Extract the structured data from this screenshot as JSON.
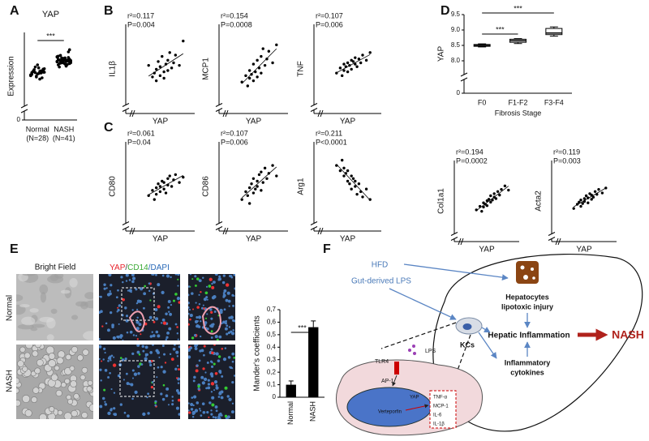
{
  "panel_labels": [
    "A",
    "B",
    "C",
    "D",
    "E",
    "F"
  ],
  "chart_data": [
    {
      "type": "strip",
      "title": "YAP",
      "y_label": "Expression",
      "categories": [
        "Normal",
        "NASH"
      ],
      "category_notes": [
        "(N=28)",
        "(N=41)"
      ],
      "values": [
        [
          8.52,
          8.58,
          8.61,
          8.55,
          8.49,
          8.63,
          8.57,
          8.66,
          8.45,
          8.6,
          8.54,
          8.7,
          8.59,
          8.5,
          8.62,
          8.56,
          8.68,
          8.47,
          8.64,
          8.53,
          8.58,
          8.61,
          8.42,
          8.75,
          8.57,
          8.6,
          8.51,
          8.65
        ],
        [
          8.82,
          8.88,
          8.76,
          8.91,
          8.85,
          8.79,
          8.95,
          8.83,
          8.87,
          8.72,
          8.9,
          8.8,
          8.86,
          8.93,
          8.78,
          8.84,
          8.89,
          8.81,
          8.97,
          8.75,
          8.85,
          8.92,
          8.83,
          8.79,
          8.87,
          8.7,
          8.94,
          8.82,
          8.86,
          8.77,
          8.9,
          8.84,
          8.88,
          8.8,
          9.05,
          8.73,
          8.85,
          8.91,
          8.78,
          8.83,
          9.1
        ]
      ],
      "ylim": [
        8,
        9.5
      ],
      "yticks": [
        0
      ],
      "axis_break": true,
      "significance": "***",
      "color": "#000000"
    },
    {
      "type": "scatter",
      "annotation": [
        "r²=0.117",
        "P=0.004"
      ],
      "y_label": "IL1β",
      "x_label": "YAP",
      "x": [
        8.3,
        8.4,
        8.45,
        8.5,
        8.5,
        8.55,
        8.6,
        8.6,
        8.65,
        8.7,
        8.7,
        8.75,
        8.8,
        8.8,
        8.85,
        8.9,
        8.95,
        9.0,
        9.1,
        9.2
      ],
      "y": [
        4.8,
        3.9,
        4.2,
        4.5,
        3.6,
        5.1,
        4.0,
        4.7,
        5.5,
        4.3,
        3.8,
        4.9,
        5.2,
        4.4,
        5.8,
        4.6,
        5.0,
        5.6,
        4.8,
        6.7
      ],
      "xlim": [
        8,
        9.5
      ],
      "ylim": [
        2,
        8
      ],
      "axis_break": true,
      "trendline": true,
      "color": "#000000"
    },
    {
      "type": "scatter",
      "annotation": [
        "r²=0.154",
        "P=0.0008"
      ],
      "y_label": "MCP1",
      "x_label": "YAP",
      "x": [
        8.3,
        8.4,
        8.45,
        8.5,
        8.5,
        8.55,
        8.6,
        8.6,
        8.65,
        8.7,
        8.7,
        8.75,
        8.8,
        8.8,
        8.85,
        8.9,
        8.95,
        9.0,
        9.1,
        9.2
      ],
      "y": [
        3.5,
        4.0,
        3.2,
        4.4,
        3.8,
        4.1,
        3.6,
        4.9,
        4.3,
        5.2,
        3.9,
        4.6,
        5.5,
        4.2,
        6.1,
        4.8,
        5.3,
        5.9,
        5.0,
        6.4
      ],
      "xlim": [
        8,
        9.5
      ],
      "ylim": [
        2,
        8
      ],
      "axis_break": true,
      "trendline": true,
      "color": "#000000"
    },
    {
      "type": "scatter",
      "annotation": [
        "r²=0.107",
        "P=0.006"
      ],
      "y_label": "TNF",
      "x_label": "YAP",
      "x": [
        8.3,
        8.4,
        8.45,
        8.5,
        8.5,
        8.55,
        8.6,
        8.6,
        8.65,
        8.7,
        8.7,
        8.75,
        8.8,
        8.8,
        8.85,
        8.9,
        8.95,
        9.0,
        9.1,
        9.2
      ],
      "y": [
        4.2,
        4.6,
        4.0,
        4.9,
        4.4,
        4.7,
        5.0,
        4.3,
        4.8,
        5.2,
        4.5,
        5.1,
        4.9,
        5.4,
        4.7,
        5.3,
        5.0,
        5.6,
        5.2,
        5.8
      ],
      "xlim": [
        8,
        9.5
      ],
      "ylim": [
        2,
        8
      ],
      "axis_break": true,
      "trendline": true,
      "color": "#000000"
    },
    {
      "type": "scatter",
      "annotation": [
        "r²=0.061",
        "P=0.04"
      ],
      "y_label": "CD80",
      "x_label": "YAP",
      "x": [
        8.3,
        8.4,
        8.45,
        8.5,
        8.5,
        8.55,
        8.6,
        8.6,
        8.65,
        8.7,
        8.7,
        8.75,
        8.8,
        8.8,
        8.85,
        8.9,
        8.95,
        9.0,
        9.1,
        9.2
      ],
      "y": [
        3.9,
        4.3,
        3.6,
        4.5,
        4.0,
        4.8,
        4.2,
        4.6,
        5.0,
        4.4,
        4.9,
        4.1,
        5.2,
        4.7,
        5.4,
        4.6,
        5.1,
        5.5,
        4.9,
        5.3
      ],
      "xlim": [
        8,
        9.5
      ],
      "ylim": [
        2,
        8
      ],
      "axis_break": true,
      "trendline": true,
      "color": "#000000"
    },
    {
      "type": "scatter",
      "annotation": [
        "r²=0.107",
        "P=0.006"
      ],
      "y_label": "CD86",
      "x_label": "YAP",
      "x": [
        8.3,
        8.4,
        8.45,
        8.5,
        8.5,
        8.55,
        8.6,
        8.6,
        8.65,
        8.7,
        8.7,
        8.75,
        8.8,
        8.8,
        8.85,
        8.9,
        8.95,
        9.0,
        9.1,
        9.2
      ],
      "y": [
        3.6,
        4.2,
        3.9,
        4.5,
        3.3,
        4.8,
        4.1,
        5.2,
        4.4,
        5.0,
        4.6,
        5.5,
        4.3,
        5.7,
        4.9,
        6.0,
        5.2,
        5.6,
        6.2,
        5.4
      ],
      "xlim": [
        8,
        9.5
      ],
      "ylim": [
        2,
        8
      ],
      "axis_break": true,
      "trendline": true,
      "color": "#000000"
    },
    {
      "type": "scatter",
      "annotation": [
        "r²=0.211",
        "P<0.0001"
      ],
      "y_label": "Arg1",
      "x_label": "YAP",
      "x": [
        8.3,
        8.4,
        8.45,
        8.5,
        8.5,
        8.55,
        8.6,
        8.6,
        8.65,
        8.7,
        8.7,
        8.75,
        8.8,
        8.8,
        8.85,
        8.9,
        8.95,
        9.0,
        9.1,
        9.2
      ],
      "y": [
        10.6,
        10.4,
        10.8,
        10.2,
        10.5,
        10.3,
        10.0,
        10.4,
        9.9,
        10.2,
        9.7,
        10.1,
        9.8,
        10.0,
        9.5,
        9.9,
        9.6,
        9.4,
        9.7,
        9.3
      ],
      "xlim": [
        8,
        9.5
      ],
      "ylim": [
        8.5,
        11.5
      ],
      "axis_break": true,
      "trendline": true,
      "color": "#000000"
    },
    {
      "type": "box",
      "y_label": "YAP",
      "x_label": "Fibrosis Stage",
      "categories": [
        "F0",
        "F1-F2",
        "F3-F4"
      ],
      "boxes": [
        {
          "min": 8.45,
          "q1": 8.47,
          "median": 8.5,
          "q3": 8.53,
          "max": 8.55
        },
        {
          "min": 8.56,
          "q1": 8.6,
          "median": 8.65,
          "q3": 8.7,
          "max": 8.72
        },
        {
          "min": 8.8,
          "q1": 8.85,
          "median": 8.9,
          "q3": 9.05,
          "max": 9.1
        }
      ],
      "ylim": [
        8,
        9.5
      ],
      "yticks": [
        0,
        {
          "value": 8,
          "label": "8.0"
        },
        {
          "value": 8.5,
          "label": "8.5"
        },
        {
          "value": 9,
          "label": "9.0"
        },
        {
          "value": 9.5,
          "label": "9.5"
        }
      ],
      "axis_break": true,
      "significance": [
        "***",
        "***"
      ]
    },
    {
      "type": "scatter",
      "annotation": [
        "r²=0.194",
        "P=0.0002"
      ],
      "y_label": "Col1a1",
      "x_label": "YAP",
      "x": [
        8.3,
        8.4,
        8.45,
        8.5,
        8.5,
        8.55,
        8.6,
        8.6,
        8.65,
        8.7,
        8.7,
        8.75,
        8.8,
        8.8,
        8.85,
        8.9,
        8.95,
        9.0,
        9.1,
        9.2
      ],
      "y": [
        3.0,
        3.5,
        2.8,
        4.0,
        3.4,
        3.8,
        4.3,
        3.6,
        4.5,
        4.1,
        5.0,
        4.4,
        4.8,
        5.3,
        4.6,
        5.6,
        5.1,
        5.9,
        6.4,
        5.8
      ],
      "xlim": [
        8,
        9.5
      ],
      "ylim": [
        0,
        10
      ],
      "axis_break": true,
      "trendline": true,
      "color": "#000000"
    },
    {
      "type": "scatter",
      "annotation": [
        "r²=0.119",
        "P=0.003"
      ],
      "y_label": "Acta2",
      "x_label": "YAP",
      "x": [
        8.3,
        8.4,
        8.45,
        8.5,
        8.5,
        8.55,
        8.6,
        8.6,
        8.65,
        8.7,
        8.7,
        8.75,
        8.8,
        8.8,
        8.85,
        8.9,
        8.95,
        9.0,
        9.1,
        9.2
      ],
      "y": [
        3.2,
        3.8,
        4.1,
        3.5,
        4.4,
        3.9,
        4.6,
        4.2,
        5.0,
        4.0,
        4.7,
        5.3,
        4.5,
        5.1,
        4.8,
        5.6,
        5.2,
        5.9,
        5.4,
        6.1
      ],
      "xlim": [
        8,
        9.5
      ],
      "ylim": [
        0,
        10
      ],
      "axis_break": true,
      "trendline": true,
      "color": "#000000"
    },
    {
      "type": "bar",
      "y_label": "Mander's coefficients",
      "categories": [
        "Normal",
        "NASH"
      ],
      "values": [
        0.1,
        0.56
      ],
      "errors": [
        0.03,
        0.05
      ],
      "ylim": [
        0,
        0.7
      ],
      "yticks": [
        0,
        {
          "value": 0.1,
          "label": "0,1"
        },
        {
          "value": 0.2,
          "label": "0,2"
        },
        {
          "value": 0.3,
          "label": "0,3"
        },
        {
          "value": 0.4,
          "label": "0,4"
        },
        {
          "value": 0.5,
          "label": "0,5"
        },
        {
          "value": 0.6,
          "label": "0,6"
        },
        {
          "value": 0.7,
          "label": "0,7"
        }
      ],
      "significance": "***",
      "color": "#000000"
    }
  ],
  "micrographs": {
    "columns": [
      "Bright Field"
    ],
    "stain": [
      {
        "text": "YAP",
        "color": "#e8202a"
      },
      {
        "text": "/",
        "color": "#333333"
      },
      {
        "text": "CD14",
        "color": "#3aa935"
      },
      {
        "text": "/DAPI",
        "color": "#2a6ab8"
      }
    ],
    "rows": [
      "Normal",
      "NASH"
    ]
  },
  "diagram": {
    "inputs": [
      "HFD",
      "Gut-derived LPS"
    ],
    "hepatocytes": [
      "Hepatocytes",
      "lipotoxic injury"
    ],
    "inflammation": "Hepatic Inflammation",
    "outcome": "NASH",
    "cytokines": [
      "Inflammatory",
      "cytokines"
    ],
    "kupffer": "KCs",
    "cell": {
      "ligand": "LPS",
      "receptor": "TLR4",
      "factor": "AP-1",
      "nuclear": "YAP",
      "drug": "Verteporfin",
      "products": [
        "TNF-α",
        "MCP-1",
        "IL-6",
        "IL-1β"
      ]
    }
  }
}
